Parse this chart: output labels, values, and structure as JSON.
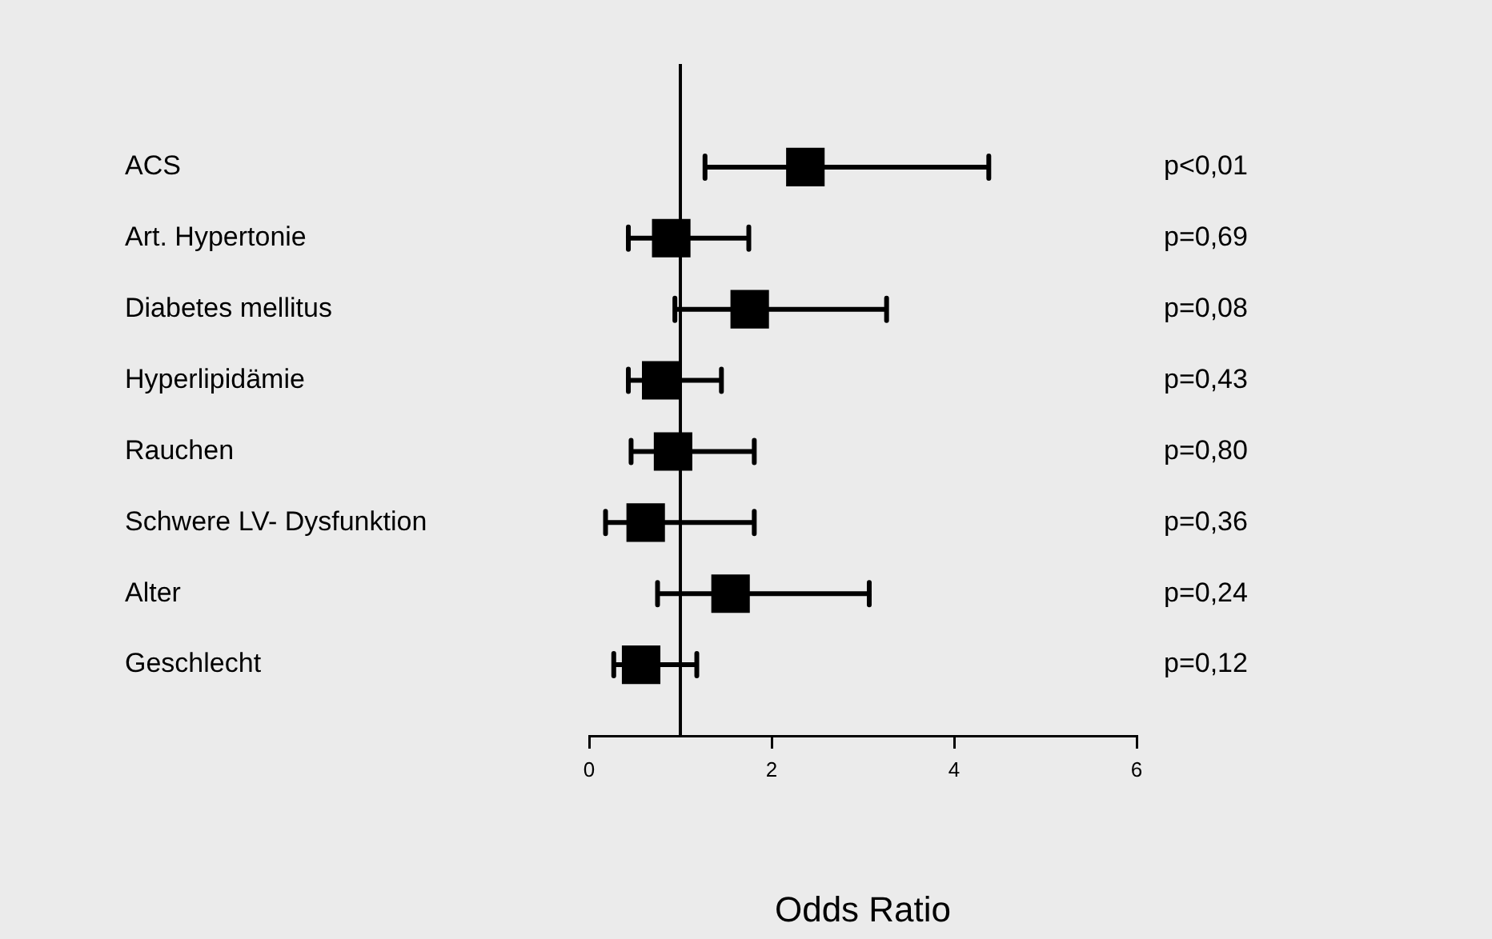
{
  "chart_data": {
    "type": "scatter",
    "orientation": "horizontal",
    "xlabel": "Odds Ratio",
    "categories": [
      "ACS",
      "Art. Hypertonie",
      "Diabetes mellitus",
      "Hyperlipidämie",
      "Rauchen",
      "Schwere LV- Dysfunktion",
      "Alter",
      "Geschlecht"
    ],
    "values": [
      2.37,
      0.9,
      1.76,
      0.79,
      0.92,
      0.62,
      1.55,
      0.57
    ],
    "errors": [
      [
        1.27,
        4.38
      ],
      [
        0.43,
        1.75
      ],
      [
        0.94,
        3.26
      ],
      [
        0.43,
        1.45
      ],
      [
        0.46,
        1.81
      ],
      [
        0.18,
        1.81
      ],
      [
        0.75,
        3.07
      ],
      [
        0.27,
        1.18
      ]
    ],
    "color": "#000000",
    "marker": "square",
    "xlim": [
      0,
      6
    ],
    "xticks": [
      0,
      2,
      4,
      6
    ],
    "ref_lines": [
      {
        "axis": "x",
        "value": 1
      }
    ],
    "annotations": [
      "p<0,01",
      "p=0,69",
      "p=0,08",
      "p=0,43",
      "p=0,80",
      "p=0,36",
      "p=0,24",
      "p=0,12"
    ],
    "grid": false,
    "legend": false
  }
}
